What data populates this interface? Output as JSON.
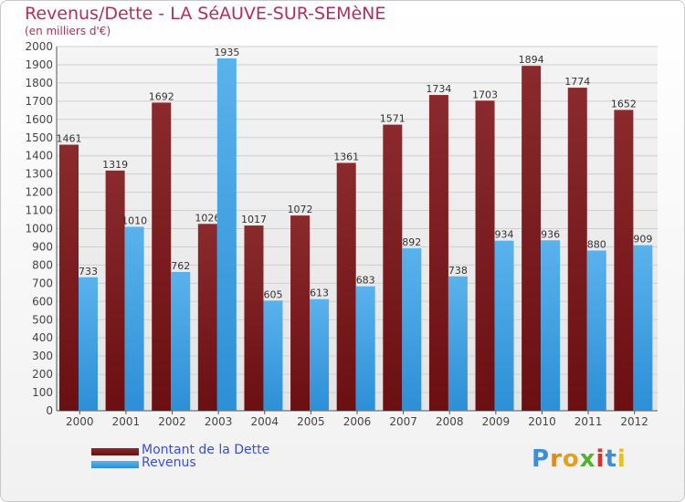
{
  "title": "Revenus/Dette - LA SéAUVE-SUR-SEMèNE",
  "subtitle": "(en milliers d'€)",
  "colors": {
    "dette": "#6b0f12",
    "dette_light": "#8a2a2d",
    "revenus": "#2d8fd6",
    "revenus_light": "#5ab2ec",
    "title": "#b0305a",
    "legend_text": "#3a4fd6"
  },
  "chart_data": {
    "type": "bar",
    "categories": [
      "2000",
      "2001",
      "2002",
      "2003",
      "2004",
      "2005",
      "2006",
      "2007",
      "2008",
      "2009",
      "2010",
      "2011",
      "2012"
    ],
    "series": [
      {
        "name": "Montant de la Dette",
        "values": [
          1461,
          1319,
          1692,
          1026,
          1017,
          1072,
          1361,
          1571,
          1734,
          1703,
          1894,
          1774,
          1652
        ]
      },
      {
        "name": "Revenus",
        "values": [
          733,
          1010,
          762,
          1935,
          605,
          613,
          683,
          892,
          738,
          934,
          936,
          880,
          909
        ]
      }
    ],
    "ylim": [
      0,
      2000
    ],
    "yticks": [
      0,
      100,
      200,
      300,
      400,
      500,
      600,
      700,
      800,
      900,
      1000,
      1100,
      1200,
      1300,
      1400,
      1500,
      1600,
      1700,
      1800,
      1900,
      2000
    ],
    "grid": true
  },
  "legend": {
    "items": [
      "Montant de la Dette",
      "Revenus"
    ]
  },
  "logo": {
    "letters": [
      "P",
      "r",
      "o",
      "x",
      "i",
      "t",
      "i"
    ],
    "colors": [
      "#3a8fd8",
      "#e08a1e",
      "#e0a020",
      "#58b030",
      "#d8302a",
      "#3a8fd8",
      "#e8c020"
    ]
  }
}
